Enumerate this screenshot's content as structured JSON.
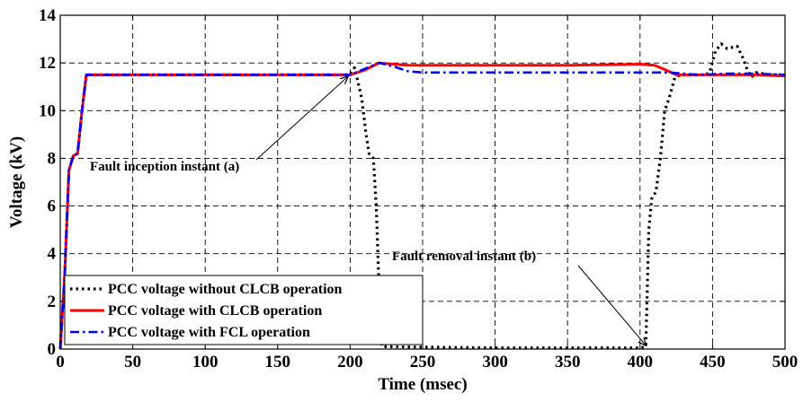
{
  "chart_data": {
    "type": "line",
    "title": "",
    "xlabel": "Time (msec)",
    "ylabel": "Voltage (kV)",
    "xlim": [
      0,
      500
    ],
    "ylim": [
      0,
      14
    ],
    "x_ticks": [
      0,
      50,
      100,
      150,
      200,
      250,
      300,
      350,
      400,
      450,
      500
    ],
    "y_ticks": [
      0,
      2,
      4,
      6,
      8,
      10,
      12,
      14
    ],
    "grid": true,
    "grid_style": "dashed",
    "legend_position": "bottom-left",
    "series": [
      {
        "name": "PCC voltage without CLCB operation",
        "color": "#000000",
        "line_style": "dotted",
        "points": [
          [
            0,
            0
          ],
          [
            3,
            3
          ],
          [
            6,
            7.5
          ],
          [
            9,
            8.1
          ],
          [
            12,
            8.2
          ],
          [
            15,
            10
          ],
          [
            18,
            11.5
          ],
          [
            100,
            11.5
          ],
          [
            200,
            11.5
          ],
          [
            203,
            11.8
          ],
          [
            205,
            11.3
          ],
          [
            208,
            10.5
          ],
          [
            211,
            9.0
          ],
          [
            213,
            8.2
          ],
          [
            216,
            8.0
          ],
          [
            218,
            6.0
          ],
          [
            220,
            2.5
          ],
          [
            222,
            0.1
          ],
          [
            300,
            0.05
          ],
          [
            400,
            0.05
          ],
          [
            404,
            0.1
          ],
          [
            406,
            5.0
          ],
          [
            408,
            6.3
          ],
          [
            411,
            6.6
          ],
          [
            414,
            8.0
          ],
          [
            417,
            10.0
          ],
          [
            420,
            10.5
          ],
          [
            424,
            11.4
          ],
          [
            428,
            11.5
          ],
          [
            445,
            11.5
          ],
          [
            448,
            11.6
          ],
          [
            452,
            12.5
          ],
          [
            456,
            12.8
          ],
          [
            460,
            12.6
          ],
          [
            467,
            12.7
          ],
          [
            471,
            12.2
          ],
          [
            474,
            11.7
          ],
          [
            477,
            11.4
          ],
          [
            480,
            11.6
          ],
          [
            490,
            11.5
          ],
          [
            500,
            11.5
          ]
        ]
      },
      {
        "name": "PCC voltage with CLCB operation",
        "color": "#ff0000",
        "line_style": "solid",
        "points": [
          [
            0,
            0
          ],
          [
            3,
            3
          ],
          [
            6,
            7.5
          ],
          [
            9,
            8.1
          ],
          [
            12,
            8.2
          ],
          [
            15,
            10
          ],
          [
            18,
            11.5
          ],
          [
            100,
            11.5
          ],
          [
            200,
            11.5
          ],
          [
            210,
            11.7
          ],
          [
            220,
            12.0
          ],
          [
            230,
            11.95
          ],
          [
            240,
            11.9
          ],
          [
            300,
            11.9
          ],
          [
            350,
            11.9
          ],
          [
            400,
            11.95
          ],
          [
            410,
            11.9
          ],
          [
            418,
            11.7
          ],
          [
            425,
            11.5
          ],
          [
            440,
            11.5
          ],
          [
            460,
            11.5
          ],
          [
            480,
            11.5
          ],
          [
            500,
            11.45
          ]
        ]
      },
      {
        "name": "PCC voltage with FCL operation",
        "color": "#0000ff",
        "line_style": "dashdot",
        "points": [
          [
            0,
            0
          ],
          [
            3,
            3
          ],
          [
            6,
            7.5
          ],
          [
            9,
            8.1
          ],
          [
            12,
            8.2
          ],
          [
            15,
            10
          ],
          [
            18,
            11.5
          ],
          [
            100,
            11.5
          ],
          [
            200,
            11.5
          ],
          [
            210,
            11.75
          ],
          [
            220,
            12.0
          ],
          [
            230,
            11.85
          ],
          [
            240,
            11.65
          ],
          [
            250,
            11.6
          ],
          [
            300,
            11.6
          ],
          [
            350,
            11.6
          ],
          [
            400,
            11.6
          ],
          [
            420,
            11.6
          ],
          [
            440,
            11.5
          ],
          [
            460,
            11.55
          ],
          [
            480,
            11.55
          ],
          [
            500,
            11.5
          ]
        ]
      }
    ],
    "annotations": [
      {
        "text": "Fault inception instant (a)",
        "arrow_to": [
          200,
          11.6
        ]
      },
      {
        "text": "Fault removal instant (b)",
        "arrow_to": [
          403,
          0.1
        ]
      }
    ]
  }
}
